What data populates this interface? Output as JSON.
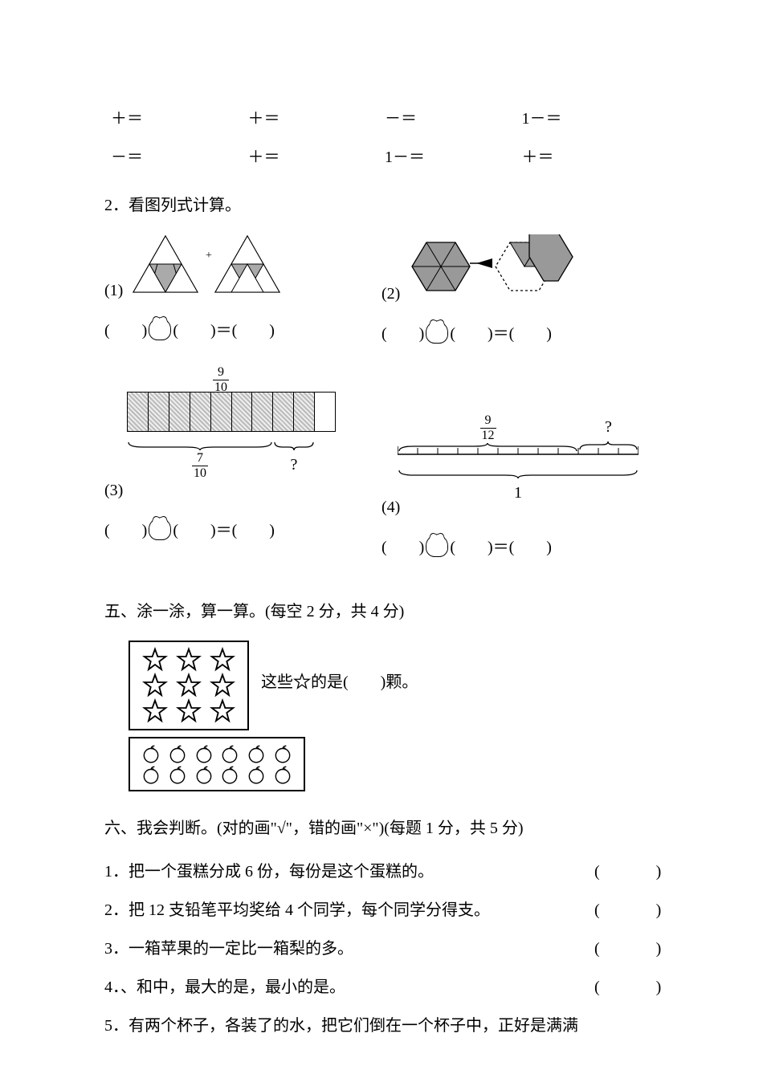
{
  "equations": {
    "row1": [
      "＋＝",
      "＋＝",
      "－＝",
      "1－＝"
    ],
    "row2": [
      "－＝",
      "＋＝",
      "1－＝",
      "＋＝"
    ]
  },
  "section4": {
    "title": "2．看图列式计算。",
    "labels": {
      "p1": "(1)",
      "p2": "(2)",
      "p3": "(3)",
      "p4": "(4)"
    },
    "answer_template": "(　　)　 (　　)＝(　　)",
    "p3": {
      "top_frac": {
        "num": "9",
        "den": "10"
      },
      "bot_frac": {
        "num": "7",
        "den": "10"
      },
      "q": "?"
    },
    "p4": {
      "top_frac": {
        "num": "9",
        "den": "12"
      },
      "below": "1",
      "q": "?"
    }
  },
  "section5": {
    "title": "五、涂一涂，算一算。(每空 2 分，共 4 分)",
    "text_before": "这些",
    "text_after": "的是(　　)颗。",
    "star_rows": 3,
    "star_cols": 3,
    "apple_rows": 2,
    "apple_cols": 6
  },
  "section6": {
    "title": "六、我会判断。(对的画\"√\"，错的画\"×\")(每题 1 分，共 5 分)",
    "items": [
      "1．把一个蛋糕分成 6 份，每份是这个蛋糕的。",
      "2．把 12 支铅笔平均奖给 4 个同学，每个同学分得支。",
      "3．一箱苹果的一定比一箱梨的多。",
      "4．、和中，最大的是，最小的是。",
      "5．有两个杯子，各装了的水，把它们倒在一个杯子中，正好是满满"
    ],
    "paren": "(　　)"
  },
  "colors": {
    "text": "#000000",
    "bg": "#ffffff",
    "fill_gray": "#999999",
    "hatch_light": "#eeeeee",
    "hatch_dark": "#bbbbbb"
  }
}
